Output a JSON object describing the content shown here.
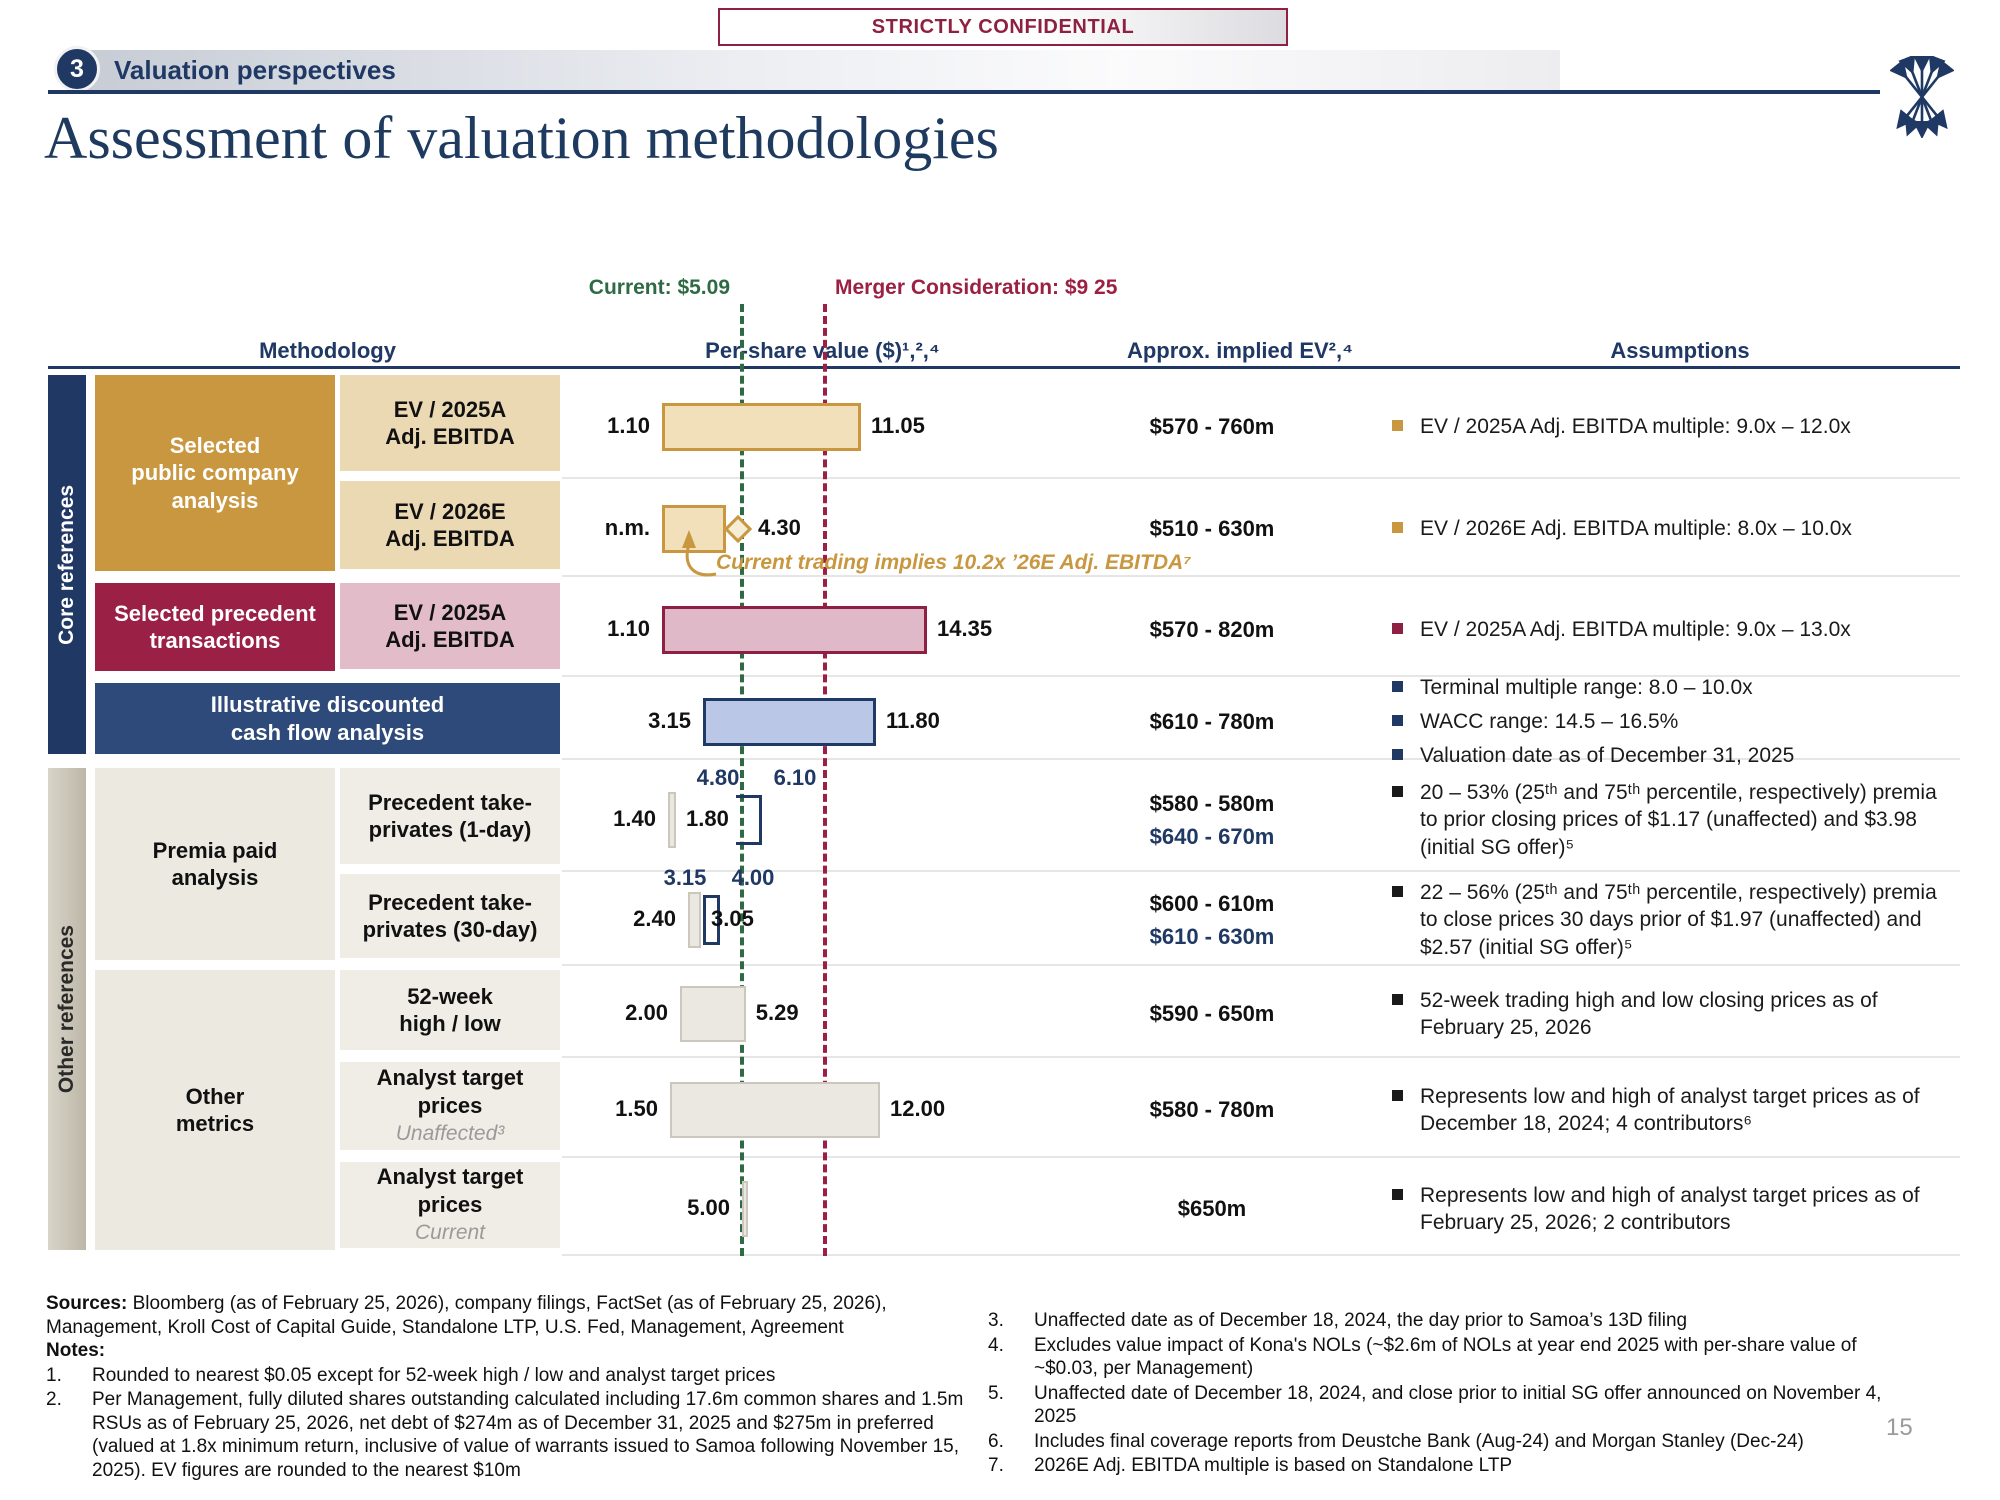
{
  "header": {
    "confidential": "STRICTLY CONFIDENTIAL",
    "section_number": "3",
    "section_title": "Valuation perspectives",
    "title": "Assessment of valuation methodologies"
  },
  "colors": {
    "navy": "#1F3864",
    "gold": "#C9973F",
    "maroon": "#9B2044",
    "maroon_dark": "#8E2044",
    "green": "#2E6B45",
    "tan_fill": "#F1E0BA",
    "pink_fill": "#DFB9C7",
    "blue_fill": "#BBC7E6",
    "gray_fill": "#EBE8E1",
    "gray_border": "#CBC7BD",
    "black": "#1a1a1a"
  },
  "table": {
    "col_methodology": "Methodology",
    "col_per_share": "Per-share value ($)¹,²,⁴",
    "col_ev": "Approx. implied EV²,⁴",
    "col_assumptions": "Assumptions",
    "current_line_label": "Current: $5.09",
    "merger_line_label": "Merger Consideration: $9 25",
    "sidebar_core": "Core references",
    "sidebar_other": "Other references",
    "annotation": "Current trading implies 10.2x ’26E Adj. EBITDA⁷"
  },
  "groups": {
    "public": "Selected\npublic company\nanalysis",
    "precedent": "Selected precedent\ntransactions",
    "dcf": "Illustrative discounted\ncash flow analysis",
    "premia": "Premia paid\nanalysis",
    "other_metrics": "Other\nmetrics"
  },
  "rows": [
    {
      "sub": "EV / 2025A\nAdj. EBITDA",
      "sub_style": "tan",
      "ev": [
        "$570 - 760m"
      ],
      "bullets": [
        {
          "color": "gold",
          "text": "EV / 2025A Adj. EBITDA multiple: 9.0x – 12.0x"
        }
      ]
    },
    {
      "sub": "EV / 2026E\nAdj. EBITDA",
      "sub_style": "tan",
      "ev": [
        "$510 - 630m"
      ],
      "bullets": [
        {
          "color": "gold",
          "text": "EV / 2026E Adj. EBITDA multiple: 8.0x – 10.0x"
        }
      ]
    },
    {
      "sub": "EV / 2025A\nAdj. EBITDA",
      "sub_style": "pink",
      "ev": [
        "$570 - 820m"
      ],
      "bullets": [
        {
          "color": "maroon",
          "text": "EV / 2025A Adj. EBITDA multiple: 9.0x – 13.0x"
        }
      ]
    },
    {
      "sub": null,
      "ev": [
        "$610 - 780m"
      ],
      "bullets": [
        {
          "color": "navy",
          "text": "Terminal multiple range: 8.0 – 10.0x"
        },
        {
          "color": "navy",
          "text": "WACC range: 14.5 – 16.5%"
        },
        {
          "color": "navy",
          "text": "Valuation date as of December 31, 2025"
        }
      ]
    },
    {
      "sub": "Precedent take-\nprivates (1-day)",
      "sub_style": "beige",
      "ev": [
        "$580 - 580m",
        "$640 - 670m"
      ],
      "bullets": [
        {
          "color": "black",
          "text": "20 – 53% (25ᵗʰ and 75ᵗʰ percentile, respectively) premia to prior closing prices of $1.17 (unaffected) and $3.98 (initial SG offer)⁵"
        }
      ]
    },
    {
      "sub": "Precedent take-\nprivates (30-day)",
      "sub_style": "beige",
      "ev": [
        "$600 - 610m",
        "$610 - 630m"
      ],
      "bullets": [
        {
          "color": "black",
          "text": "22 – 56% (25ᵗʰ and 75ᵗʰ percentile, respectively) premia to close prices 30 days prior of $1.97 (unaffected) and $2.57 (initial SG offer)⁵"
        }
      ]
    },
    {
      "sub": "52-week\nhigh / low",
      "sub_style": "beige",
      "ev": [
        "$590 - 650m"
      ],
      "bullets": [
        {
          "color": "black",
          "text": "52-week trading high and low closing prices as of February 25, 2026"
        }
      ]
    },
    {
      "sub": "Analyst target\nprices",
      "sub_italic": "Unaffected³",
      "sub_style": "beige",
      "ev": [
        "$580 - 780m"
      ],
      "bullets": [
        {
          "color": "black",
          "text": "Represents low and high of analyst target prices as of December 18, 2024; 4 contributors⁶"
        }
      ]
    },
    {
      "sub": "Analyst target\nprices",
      "sub_italic": "Current",
      "sub_style": "beige",
      "ev": [
        "$650m"
      ],
      "bullets": [
        {
          "color": "black",
          "text": "Represents low and high of analyst target prices as of February 25, 2026; 2 contributors"
        }
      ]
    }
  ],
  "bars": [
    {
      "row": 0,
      "kind": "box",
      "style": "gold",
      "low": 1.1,
      "high": 11.05,
      "low_label": "1.10",
      "high_label": "11.05"
    },
    {
      "row": 1,
      "kind": "box",
      "style": "gold",
      "low": 1.1,
      "high": 4.3,
      "low_label": "n.m.",
      "high_label": "4.30",
      "diamond": true
    },
    {
      "row": 2,
      "kind": "box",
      "style": "pink",
      "low": 1.1,
      "high": 14.35,
      "low_label": "1.10",
      "high_label": "14.35"
    },
    {
      "row": 3,
      "kind": "box",
      "style": "blue",
      "low": 3.15,
      "high": 11.8,
      "low_label": "3.15",
      "high_label": "11.80"
    },
    {
      "row": 4,
      "kind": "box",
      "style": "gray",
      "low": 1.4,
      "high": 1.8,
      "low_label": "1.40",
      "high_label": "1.80"
    },
    {
      "row": 4,
      "kind": "bracket",
      "open_left": true,
      "low": 4.8,
      "high": 6.1,
      "above_labels": [
        "4.80",
        "6.10"
      ]
    },
    {
      "row": 5,
      "kind": "box",
      "style": "gray",
      "low": 2.4,
      "high": 3.05,
      "low_label": "2.40",
      "high_label": "3.05"
    },
    {
      "row": 5,
      "kind": "bracket",
      "open_left": false,
      "low": 3.15,
      "high": 4.0,
      "above_labels": [
        "3.15",
        "4.00"
      ]
    },
    {
      "row": 6,
      "kind": "box",
      "style": "gray",
      "low": 2.0,
      "high": 5.29,
      "low_label": "2.00",
      "high_label": "5.29"
    },
    {
      "row": 7,
      "kind": "box",
      "style": "gray",
      "low": 1.5,
      "high": 12.0,
      "low_label": "1.50",
      "high_label": "12.00"
    },
    {
      "row": 8,
      "kind": "box",
      "style": "gray",
      "low": 5.1,
      "high": 5.4,
      "low_label": "5.00",
      "high_label": ""
    }
  ],
  "chart_data": {
    "type": "bar",
    "subtype": "horizontal-range football field",
    "xlabel": "Per-share value ($)",
    "reference_lines": [
      {
        "label": "Current",
        "value": 5.09
      },
      {
        "label": "Merger Consideration",
        "value": 9.25
      }
    ],
    "rows": [
      {
        "methodology": "Selected public company analysis — EV / 2025A Adj. EBITDA",
        "low": 1.1,
        "high": 11.05,
        "implied_ev": "$570 - 760m"
      },
      {
        "methodology": "Selected public company analysis — EV / 2026E Adj. EBITDA",
        "low_label": "n.m.",
        "high": 4.3,
        "implied_ev": "$510 - 630m"
      },
      {
        "methodology": "Selected precedent transactions — EV / 2025A Adj. EBITDA",
        "low": 1.1,
        "high": 14.35,
        "implied_ev": "$570 - 820m"
      },
      {
        "methodology": "Illustrative discounted cash flow analysis",
        "low": 3.15,
        "high": 11.8,
        "implied_ev": "$610 - 780m"
      },
      {
        "methodology": "Precedent take-privates (1-day)",
        "ranges": [
          [
            1.4,
            1.8
          ],
          [
            4.8,
            6.1
          ]
        ],
        "implied_ev": [
          "$580 - 580m",
          "$640 - 670m"
        ]
      },
      {
        "methodology": "Precedent take-privates (30-day)",
        "ranges": [
          [
            2.4,
            3.05
          ],
          [
            3.15,
            4.0
          ]
        ],
        "implied_ev": [
          "$600 - 610m",
          "$610 - 630m"
        ]
      },
      {
        "methodology": "52-week high / low",
        "low": 2.0,
        "high": 5.29,
        "implied_ev": "$590 - 650m"
      },
      {
        "methodology": "Analyst target prices (Unaffected)",
        "low": 1.5,
        "high": 12.0,
        "implied_ev": "$580 - 780m"
      },
      {
        "methodology": "Analyst target prices (Current)",
        "low": 5.0,
        "implied_ev": "$650m"
      }
    ],
    "annotation": "Current trading implies 10.2x ’26E Adj. EBITDA"
  },
  "footnotes": {
    "sources_label": "Sources:",
    "sources_text": "Bloomberg (as of February 25, 2026), company filings, FactSet (as of February 25, 2026), Management, Kroll Cost of Capital Guide, Standalone LTP, U.S. Fed, Management, Agreement",
    "notes_label": "Notes:",
    "left": [
      {
        "num": "1.",
        "text": "Rounded to nearest $0.05 except for 52-week high / low and analyst target prices"
      },
      {
        "num": "2.",
        "text": "Per Management, fully diluted shares outstanding calculated including 17.6m common shares and 1.5m RSUs as of February 25, 2026, net debt of $274m as of December 31, 2025 and $275m in preferred (valued at 1.8x minimum return, inclusive of value of warrants issued to Samoa following November 15, 2025). EV figures are rounded to the nearest $10m"
      }
    ],
    "right": [
      {
        "num": "3.",
        "text": "Unaffected date as of December 18, 2024, the day prior to Samoa’s 13D filing"
      },
      {
        "num": "4.",
        "text": "Excludes value impact of Kona's NOLs (~$2.6m of NOLs at year end 2025 with per-share value of ~$0.03, per Management)"
      },
      {
        "num": "5.",
        "text": "Unaffected date of December 18, 2024, and close prior to initial SG offer announced on November 4, 2025"
      },
      {
        "num": "6.",
        "text": "Includes final coverage reports from Deustche Bank (Aug-24) and Morgan Stanley (Dec-24)"
      },
      {
        "num": "7.",
        "text": "2026E Adj. EBITDA multiple is based on Standalone LTP"
      }
    ]
  },
  "page_number": "15"
}
